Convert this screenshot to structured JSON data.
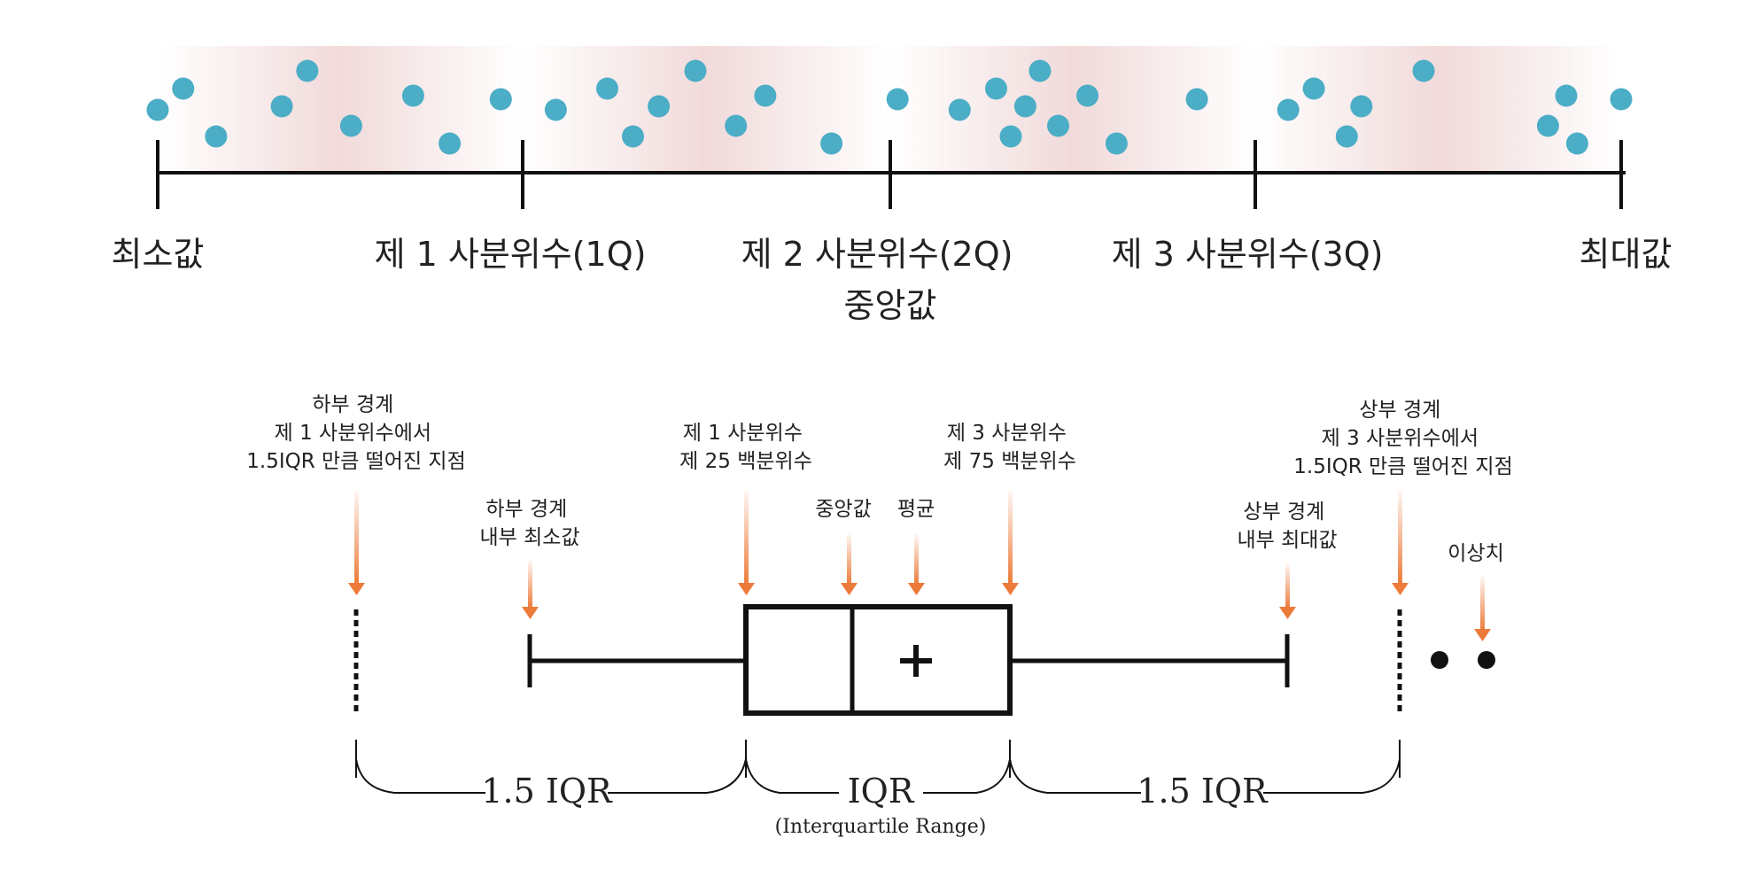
{
  "colors": {
    "point": "#4badc6",
    "axis": "#111111",
    "band": "#f3dcda",
    "arrow": "#ec7b3a",
    "text": "#222222"
  },
  "scatter": {
    "points": [
      0.0,
      0.07,
      0.16,
      0.34,
      0.41,
      0.53,
      0.7,
      0.8,
      0.94,
      1.09,
      1.23,
      1.3,
      1.37,
      1.47,
      1.58,
      1.66,
      1.84,
      2.02,
      2.19,
      2.29,
      2.33,
      2.37,
      2.41,
      2.46,
      2.54,
      2.62,
      2.84,
      3.09,
      3.16,
      3.25,
      3.29,
      3.46,
      3.8,
      3.85,
      3.88,
      4.0
    ],
    "labels": {
      "min": "최소값",
      "q1": "제 1 사분위수(1Q)",
      "q2": "제 2 사분위수(2Q)",
      "median": "중앙값",
      "q3": "제 3 사분위수(3Q)",
      "max": "최대값"
    }
  },
  "boxplot": {
    "annotations": {
      "lower_fence": [
        "하부 경계",
        "제 1 사분위수에서",
        "1.5IQR 만큼 떨어진 지점"
      ],
      "lower_inner": [
        "하부 경계",
        "내부 최소값"
      ],
      "q1": [
        "제 1 사분위수",
        "제 25 백분위수"
      ],
      "median": "중앙값",
      "mean": "평균",
      "q3": [
        "제 3 사분위수",
        "제 75 백분위수"
      ],
      "upper_inner": [
        "상부 경계",
        "내부 최대값"
      ],
      "upper_fence": [
        "상부 경계",
        "제 3 사분위수에서",
        "1.5IQR 만큼 떨어진 지점"
      ],
      "outlier": "이상치"
    },
    "braces": {
      "left": "1.5 IQR",
      "middle": "IQR",
      "middle_sub": "(Interquartile Range)",
      "right": "1.5 IQR"
    },
    "outlier_count": 2
  }
}
